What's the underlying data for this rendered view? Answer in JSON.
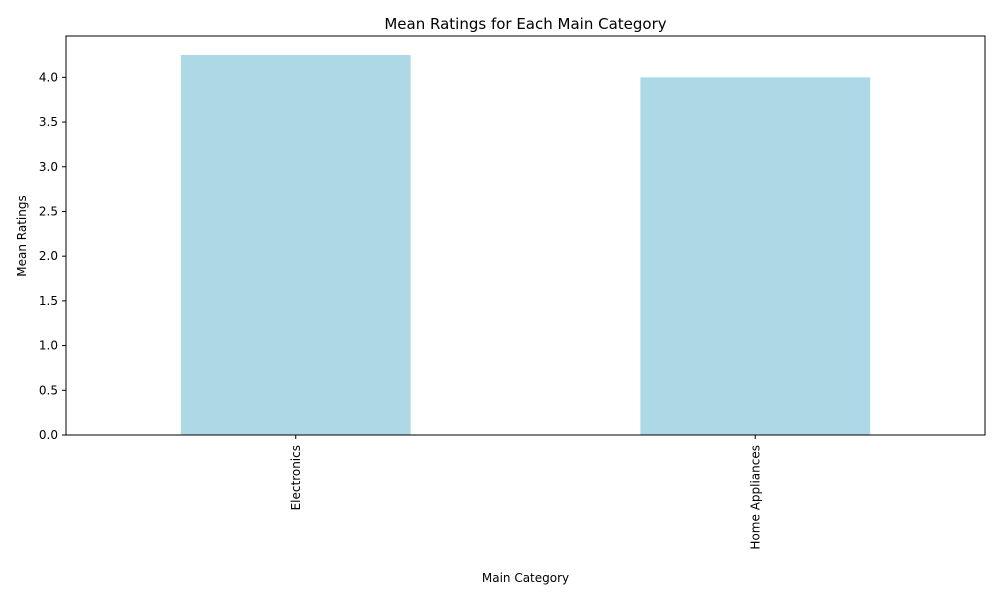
{
  "chart_data": {
    "type": "bar",
    "title": "Mean Ratings for Each Main Category",
    "xlabel": "Main Category",
    "ylabel": "Mean Ratings",
    "categories": [
      "Electronics",
      "Home Appliances"
    ],
    "values": [
      4.25,
      4.0
    ],
    "ylim": [
      0,
      4.4625
    ],
    "yticks": [
      0.0,
      0.5,
      1.0,
      1.5,
      2.0,
      2.5,
      3.0,
      3.5,
      4.0
    ],
    "ytick_labels": [
      "0.0",
      "0.5",
      "1.0",
      "1.5",
      "2.0",
      "2.5",
      "3.0",
      "3.5",
      "4.0"
    ],
    "bar_color": "#add8e6",
    "x_tick_rotation": "vertical",
    "grid": false,
    "legend": "none"
  }
}
